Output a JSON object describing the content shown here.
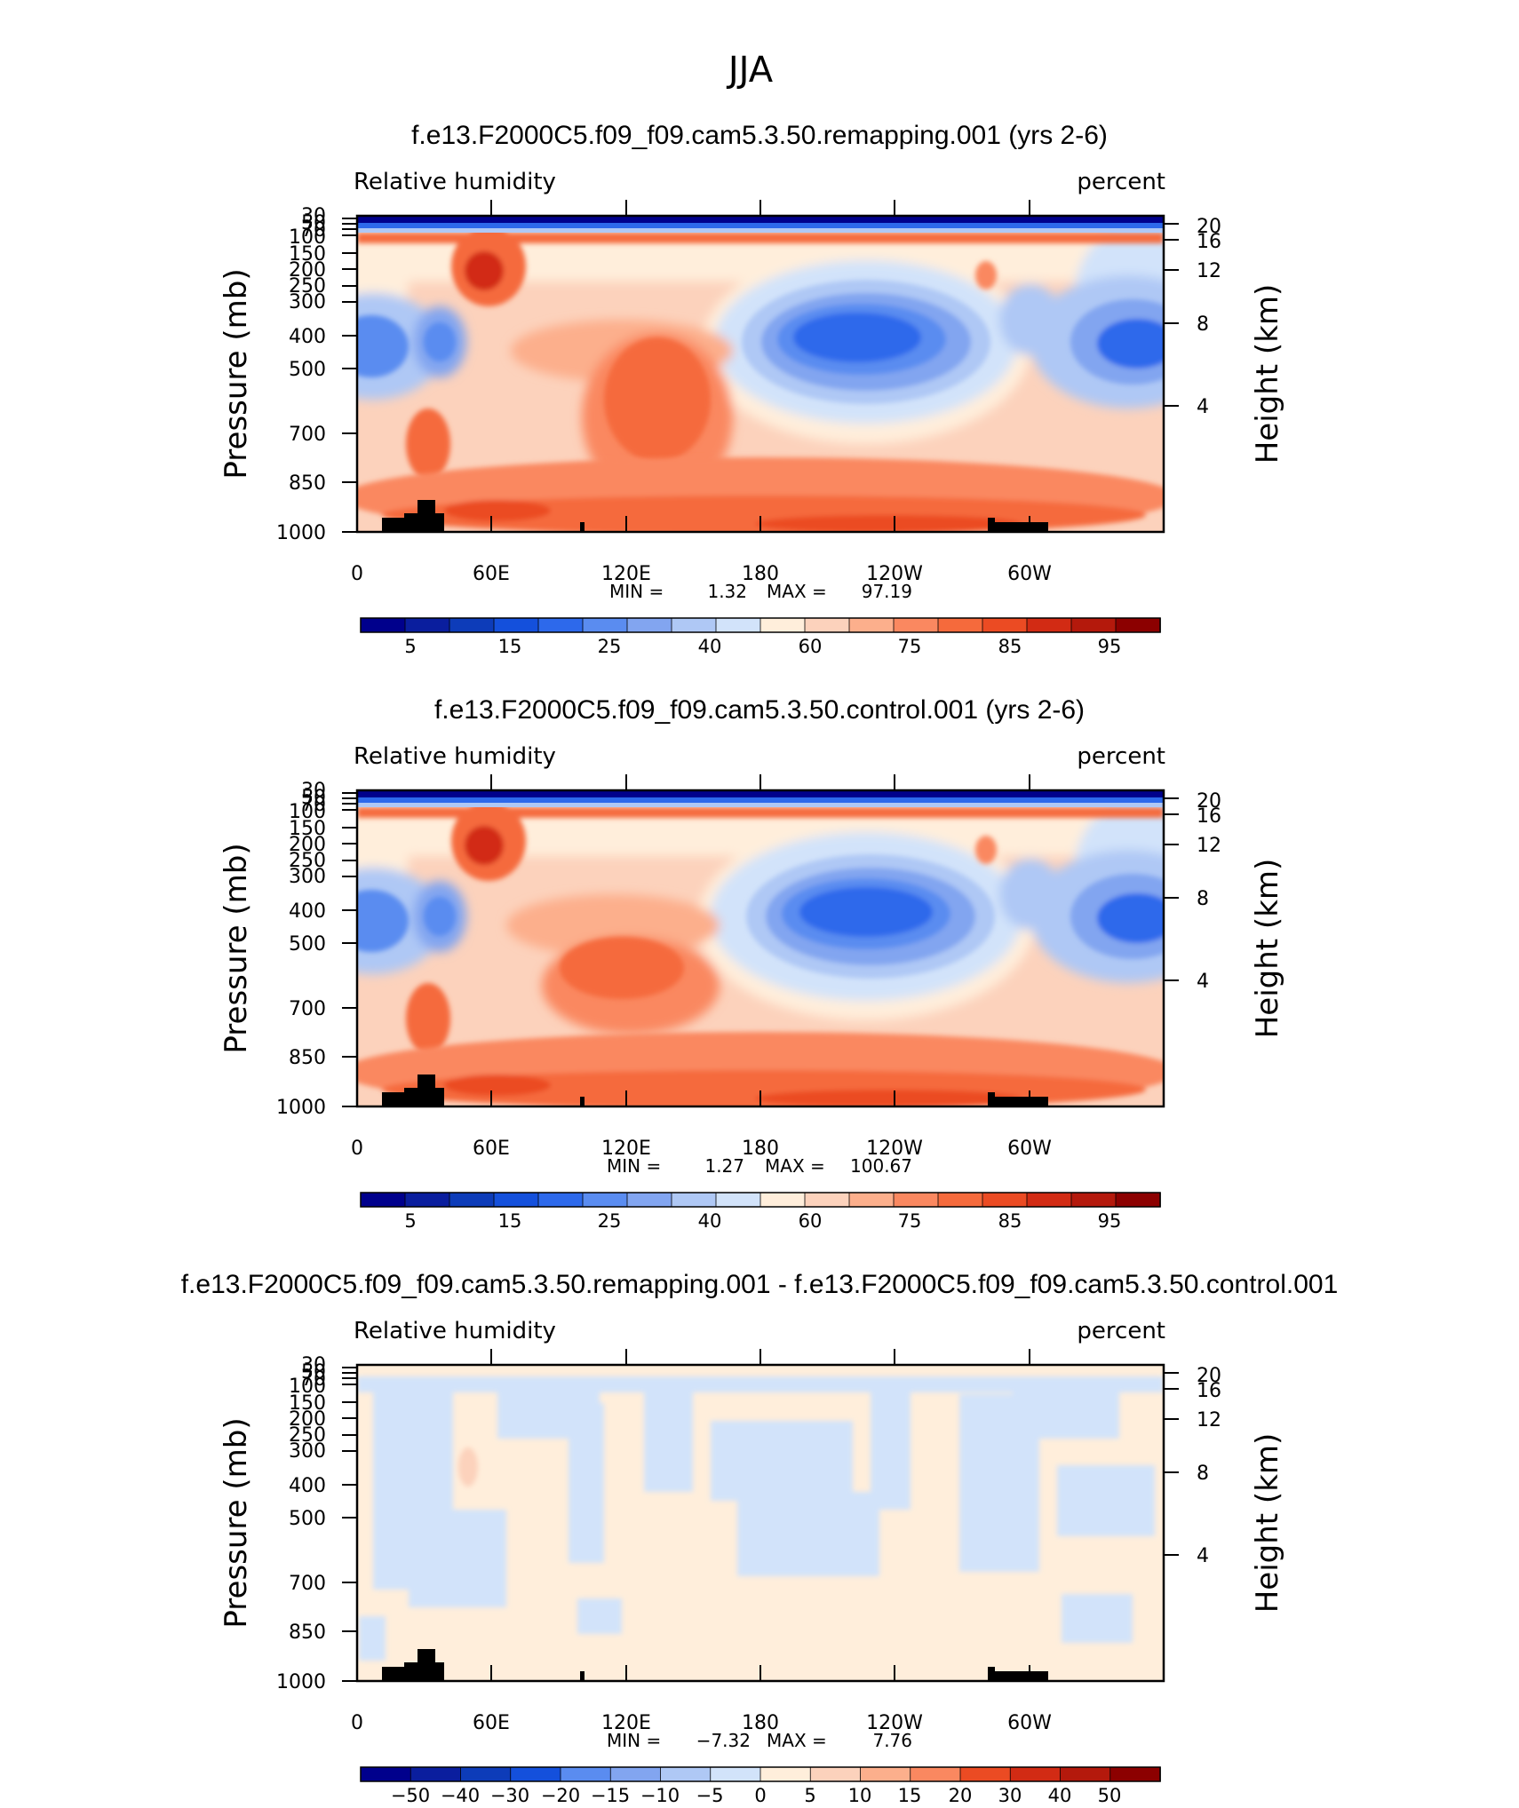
{
  "figure": {
    "title": "JJA"
  },
  "colorbar_colors": [
    "#00008c",
    "#0a1e9e",
    "#0d3cb9",
    "#1450dc",
    "#2d69eb",
    "#5a8cf0",
    "#82a5f0",
    "#afc8f5",
    "#d2e3fa",
    "#ffeedb",
    "#fcd2bc",
    "#fcaf8c",
    "#fa8860",
    "#f56a3c",
    "#eb4b23",
    "#d22b14",
    "#b4190c",
    "#8c0000"
  ],
  "common": {
    "subtitle_left": "Relative humidity",
    "subtitle_right": "percent",
    "ylabel_left": "Pressure (mb)",
    "ylabel_right": "Height (km)",
    "pressure_ticks": [
      "30",
      "50",
      "70",
      "100",
      "150",
      "200",
      "250",
      "300",
      "400",
      "500",
      "700",
      "850",
      "1000"
    ],
    "height_ticks": [
      "20",
      "16",
      "12",
      "8",
      "4"
    ],
    "x_ticks": [
      "0",
      "60E",
      "120E",
      "180",
      "120W",
      "60W"
    ],
    "min_label": "MIN =",
    "max_label": "MAX ="
  },
  "panels": [
    {
      "title": "f.e13.F2000C5.f09_f09.cam5.3.50.remapping.001 (yrs 2-6)",
      "min": "1.32",
      "max": "97.19",
      "colorbar_labels": [
        "5",
        "15",
        "25",
        "40",
        "60",
        "75",
        "85",
        "95"
      ]
    },
    {
      "title": "f.e13.F2000C5.f09_f09.cam5.3.50.control.001 (yrs 2-6)",
      "min": "1.27",
      "max": "100.67",
      "colorbar_labels": [
        "5",
        "15",
        "25",
        "40",
        "60",
        "75",
        "85",
        "95"
      ]
    },
    {
      "title": "f.e13.F2000C5.f09_f09.cam5.3.50.remapping.001 - f.e13.F2000C5.f09_f09.cam5.3.50.control.001",
      "min": "−7.32",
      "max": "7.76",
      "colorbar_labels": [
        "−50",
        "−40",
        "−30",
        "−20",
        "−15",
        "−10",
        "−5",
        "0",
        "5",
        "10",
        "15",
        "20",
        "30",
        "40",
        "50"
      ]
    }
  ],
  "chart_data": [
    {
      "type": "heatmap",
      "title": "f.e13.F2000C5.f09_f09.cam5.3.50.remapping.001 (yrs 2-6)",
      "variable": "Relative humidity",
      "units": "percent",
      "x_axis": "longitude",
      "y_axis": "pressure (mb)",
      "x_ticks": [
        "0",
        "60E",
        "120E",
        "180",
        "120W",
        "60W"
      ],
      "y_ticks_pressure": [
        30,
        50,
        70,
        100,
        150,
        200,
        250,
        300,
        400,
        500,
        700,
        850,
        1000
      ],
      "y_ticks_height_km": [
        20,
        16,
        12,
        8,
        4
      ],
      "contour_levels": [
        5,
        10,
        15,
        20,
        25,
        30,
        40,
        50,
        60,
        65,
        70,
        75,
        80,
        85,
        90,
        95
      ],
      "min": 1.32,
      "max": 97.19
    },
    {
      "type": "heatmap",
      "title": "f.e13.F2000C5.f09_f09.cam5.3.50.control.001 (yrs 2-6)",
      "variable": "Relative humidity",
      "units": "percent",
      "x_axis": "longitude",
      "y_axis": "pressure (mb)",
      "x_ticks": [
        "0",
        "60E",
        "120E",
        "180",
        "120W",
        "60W"
      ],
      "y_ticks_pressure": [
        30,
        50,
        70,
        100,
        150,
        200,
        250,
        300,
        400,
        500,
        700,
        850,
        1000
      ],
      "y_ticks_height_km": [
        20,
        16,
        12,
        8,
        4
      ],
      "contour_levels": [
        5,
        10,
        15,
        20,
        25,
        30,
        40,
        50,
        60,
        65,
        70,
        75,
        80,
        85,
        90,
        95
      ],
      "min": 1.27,
      "max": 100.67
    },
    {
      "type": "heatmap",
      "title": "f.e13.F2000C5.f09_f09.cam5.3.50.remapping.001 - f.e13.F2000C5.f09_f09.cam5.3.50.control.001",
      "variable": "Relative humidity",
      "units": "percent",
      "x_axis": "longitude",
      "y_axis": "pressure (mb)",
      "x_ticks": [
        "0",
        "60E",
        "120E",
        "180",
        "120W",
        "60W"
      ],
      "y_ticks_pressure": [
        30,
        50,
        70,
        100,
        150,
        200,
        250,
        300,
        400,
        500,
        700,
        850,
        1000
      ],
      "y_ticks_height_km": [
        20,
        16,
        12,
        8,
        4
      ],
      "contour_levels": [
        -50,
        -40,
        -30,
        -20,
        -15,
        -10,
        -5,
        0,
        5,
        10,
        15,
        20,
        30,
        40,
        50
      ],
      "min": -7.32,
      "max": 7.76
    }
  ]
}
